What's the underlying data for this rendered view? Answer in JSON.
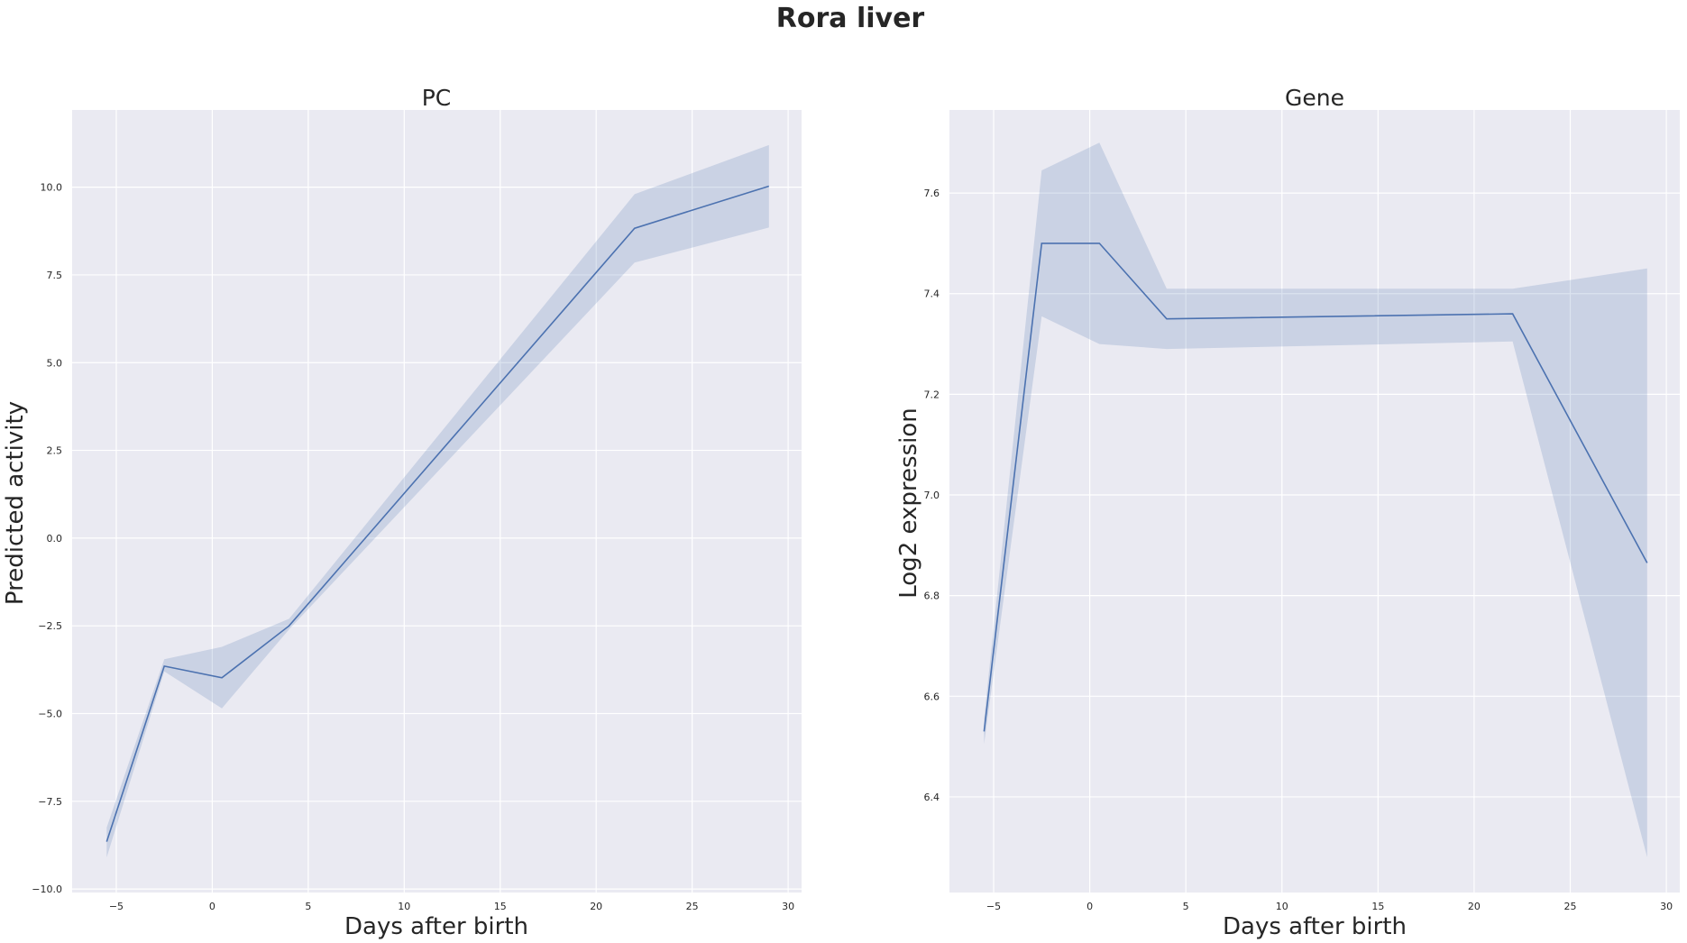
{
  "figure": {
    "suptitle": "Rora liver"
  },
  "colors": {
    "axes_bg": "#eaeaf2",
    "grid": "#ffffff",
    "line": "#4c72b0",
    "band": "#4c72b0"
  },
  "chart_data": [
    {
      "type": "line",
      "title": "PC",
      "xlabel": "Days after birth",
      "ylabel": "Predicted activity",
      "xlim": [
        -7.3,
        30.7
      ],
      "ylim": [
        -10.1,
        12.2
      ],
      "xticks": [
        -5,
        0,
        5,
        10,
        15,
        20,
        25,
        30
      ],
      "xtick_labels": [
        "−5",
        "0",
        "5",
        "10",
        "15",
        "20",
        "25",
        "30"
      ],
      "yticks": [
        -10,
        -7.5,
        -5,
        -2.5,
        0,
        2.5,
        5,
        7.5,
        10
      ],
      "ytick_labels": [
        "−10.0",
        "−7.5",
        "−5.0",
        "−2.5",
        "0.0",
        "2.5",
        "5.0",
        "7.5",
        "10.0"
      ],
      "grid": true,
      "series": [
        {
          "x": [
            -5.5,
            -2.5,
            0.5,
            4,
            22,
            29
          ],
          "y": [
            -8.65,
            -3.65,
            -3.98,
            -2.5,
            8.83,
            10.03
          ],
          "ci_low": [
            -9.1,
            -3.8,
            -4.85,
            -2.6,
            7.85,
            8.85
          ],
          "ci_high": [
            -8.25,
            -3.45,
            -3.1,
            -2.3,
            9.8,
            11.2
          ]
        }
      ]
    },
    {
      "type": "line",
      "title": "Gene",
      "xlabel": "Days after birth",
      "ylabel": "Log2 expression",
      "xlim": [
        -7.3,
        30.7
      ],
      "ylim": [
        6.21,
        7.765
      ],
      "xticks": [
        -5,
        0,
        5,
        10,
        15,
        20,
        25,
        30
      ],
      "xtick_labels": [
        "−5",
        "0",
        "5",
        "10",
        "15",
        "20",
        "25",
        "30"
      ],
      "yticks": [
        6.4,
        6.6,
        6.8,
        7.0,
        7.2,
        7.4,
        7.6
      ],
      "ytick_labels": [
        "6.4",
        "6.6",
        "6.8",
        "7.0",
        "7.2",
        "7.4",
        "7.6"
      ],
      "grid": true,
      "series": [
        {
          "x": [
            -5.5,
            -2.5,
            0.5,
            4,
            22,
            29
          ],
          "y": [
            6.53,
            7.5,
            7.5,
            7.35,
            7.36,
            6.865
          ],
          "ci_low": [
            6.505,
            7.355,
            7.3,
            7.29,
            7.305,
            6.28
          ],
          "ci_high": [
            6.555,
            7.645,
            7.7,
            7.41,
            7.41,
            7.45
          ]
        }
      ]
    }
  ]
}
